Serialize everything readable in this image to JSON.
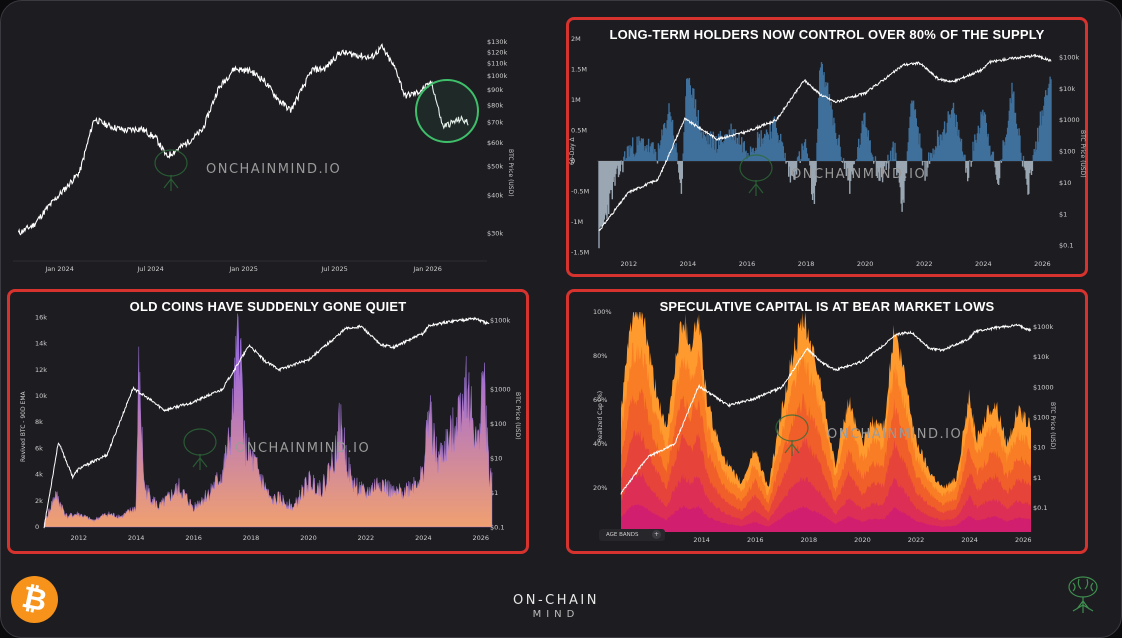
{
  "brand": {
    "watermark": "ONCHAINMIND.IO",
    "footer_main": "ON-CHAIN",
    "footer_sub": "MIND",
    "bitcoin_symbol": "₿"
  },
  "colors": {
    "background": "#1c1c21",
    "frame_red": "#d6322e",
    "price_line": "#ffffff",
    "blue_area": "#3f6f9b",
    "grey_area": "#9aa7b3",
    "highlight_green": "#2e8b57",
    "bitcoin_orange": "#f7931a"
  },
  "chart_data": [
    {
      "id": "btc-price",
      "type": "line",
      "title": "",
      "x_ticks": [
        "Jan 2024",
        "Jul 2024",
        "Jan 2025",
        "Jul 2025",
        "Jan 2026"
      ],
      "y_ticks": [
        "$130k",
        "$120k",
        "$110k",
        "$100k",
        "$90k",
        "$80k",
        "$70k",
        "$60k",
        "$50k",
        "$40k",
        "$30k"
      ],
      "ylabel": "BTC Price (USD)",
      "log_scale": true,
      "series": [
        {
          "x": [
            "2023-10-15",
            "2023-11-15",
            "2023-12-15",
            "2024-01-15",
            "2024-02-15",
            "2024-03-13",
            "2024-04-15",
            "2024-05-15",
            "2024-06-15",
            "2024-07-15",
            "2024-08-05",
            "2024-09-15",
            "2024-10-15",
            "2024-11-15",
            "2024-12-17",
            "2025-01-20",
            "2025-02-15",
            "2025-03-15",
            "2025-04-08",
            "2025-05-20",
            "2025-06-15",
            "2025-07-14",
            "2025-08-14",
            "2025-09-15",
            "2025-10-06",
            "2025-11-05",
            "2025-11-21",
            "2025-12-15",
            "2026-01-14",
            "2026-02-05",
            "2026-02-15",
            "2026-03-10",
            "2026-03-25"
          ],
          "y": [
            30,
            32,
            37,
            42,
            48,
            72,
            68,
            66,
            67,
            62,
            54,
            60,
            66,
            90,
            106,
            104,
            97,
            83,
            77,
            105,
            106,
            120,
            118,
            115,
            125,
            104,
            86,
            88,
            95,
            68,
            69,
            72,
            70
          ]
        }
      ],
      "annotations": [
        "green-circle-highlight"
      ]
    },
    {
      "id": "lth-supply",
      "type": "area",
      "title": "LONG-TERM HOLDERS NOW CONTROL OVER 80% OF THE SUPPLY",
      "x_ticks": [
        "2012",
        "2014",
        "2016",
        "2018",
        "2020",
        "2022",
        "2024",
        "2026"
      ],
      "y_ticks_left": [
        "2M",
        "1.5M",
        "1M",
        "0.5M",
        "0",
        "-0.5M",
        "-1M",
        "-1.5M"
      ],
      "y_ticks_right": [
        "$100k",
        "$10k",
        "$1000",
        "$100",
        "$10",
        "$1",
        "$0.1"
      ],
      "ylabel_left": "60-Day Δ",
      "ylabel_right": "BTC Price (USD)",
      "series": [
        {
          "x": [
            2011,
            2011.5,
            2012,
            2012.5,
            2013,
            2013.4,
            2013.8,
            2014,
            2014.5,
            2015,
            2015.5,
            2016,
            2016.5,
            2017,
            2017.5,
            2018,
            2018.3,
            2018.5,
            2019,
            2019.5,
            2020,
            2020.5,
            2021,
            2021.3,
            2021.6,
            2022,
            2022.5,
            2023,
            2023.5,
            2024,
            2024.5,
            2025,
            2025.5,
            2026,
            2026.3
          ],
          "y": [
            -1.3,
            -0.4,
            0.2,
            0.3,
            0.1,
            0.9,
            -0.5,
            1.5,
            0.4,
            0.3,
            0.5,
            0.2,
            0.4,
            0.6,
            -0.3,
            0.3,
            -0.8,
            1.7,
            0.5,
            -0.4,
            0.7,
            -0.3,
            0.2,
            -0.8,
            1.2,
            -0.2,
            0.4,
            0.8,
            -0.2,
            0.9,
            -0.4,
            1.2,
            -0.5,
            0.8,
            1.5
          ]
        },
        {
          "x": [
            2011,
            2012,
            2013,
            2013.9,
            2014.5,
            2015,
            2016,
            2017,
            2017.95,
            2018.5,
            2019,
            2020,
            2021,
            2021.3,
            2021.85,
            2022.5,
            2023,
            2024,
            2024.2,
            2025,
            2025.8,
            2026.3
          ],
          "y": [
            0.3,
            5,
            13,
            1100,
            500,
            250,
            430,
            1000,
            19000,
            6500,
            3800,
            7200,
            35000,
            58000,
            67000,
            20000,
            17000,
            42000,
            70000,
            95000,
            115000,
            78000
          ]
        }
      ]
    },
    {
      "id": "revived-btc",
      "type": "area",
      "title": "OLD COINS HAVE SUDDENLY GONE QUIET",
      "x_ticks": [
        "2012",
        "2014",
        "2016",
        "2018",
        "2020",
        "2022",
        "2024",
        "2026"
      ],
      "y_ticks_left": [
        "16k",
        "14k",
        "12k",
        "10k",
        "8k",
        "6k",
        "4k",
        "2k",
        "0"
      ],
      "y_ticks_right": [
        "$100k",
        "$1000",
        "$100",
        "$10",
        "$1",
        "$0.1"
      ],
      "ylabel_left": "Revived BTC - 90D EMA",
      "ylabel_right": "BTC Price (USD)",
      "series": [
        {
          "x": [
            2010.8,
            2011.2,
            2011.6,
            2012,
            2012.5,
            2013,
            2013.5,
            2014,
            2014.1,
            2014.3,
            2014.8,
            2015.5,
            2016,
            2016.5,
            2017,
            2017.3,
            2017.6,
            2017.8,
            2018.2,
            2018.7,
            2019,
            2019.5,
            2020,
            2020.5,
            2021,
            2021.1,
            2021.5,
            2022,
            2022.5,
            2023,
            2023.5,
            2024,
            2024.2,
            2024.5,
            2025,
            2025.5,
            2025.9,
            2026.1,
            2026.3
          ],
          "y": [
            0.2,
            2.5,
            0.8,
            1,
            0.5,
            1,
            0.8,
            1.5,
            11.5,
            3,
            1.5,
            3,
            1.5,
            2.5,
            4,
            7,
            15,
            6,
            4.5,
            2,
            2.2,
            1.5,
            3.5,
            3,
            6,
            8,
            3.5,
            2.5,
            3.5,
            2.5,
            3,
            4,
            9,
            5,
            7,
            11,
            6,
            12,
            4
          ]
        },
        {
          "x": [
            2010.8,
            2011.3,
            2011.8,
            2012,
            2013,
            2013.9,
            2014.5,
            2015,
            2016,
            2017,
            2017.95,
            2018.5,
            2019,
            2020,
            2021,
            2021.3,
            2021.85,
            2022.5,
            2023,
            2024,
            2024.2,
            2025,
            2025.8,
            2026.3
          ],
          "y": [
            0.1,
            30,
            3,
            5,
            13,
            1100,
            500,
            250,
            430,
            1000,
            19000,
            6500,
            3800,
            7200,
            35000,
            58000,
            67000,
            20000,
            17000,
            42000,
            70000,
            95000,
            115000,
            78000
          ]
        }
      ]
    },
    {
      "id": "realized-cap-bands",
      "type": "area",
      "title": "SPECULATIVE CAPITAL IS AT BEAR MARKET LOWS",
      "x_ticks": [
        "2012",
        "2014",
        "2016",
        "2018",
        "2020",
        "2022",
        "2024",
        "2026"
      ],
      "y_ticks_left": [
        "100%",
        "80%",
        "60%",
        "40%",
        "20%"
      ],
      "y_ticks_right": [
        "$100k",
        "$10k",
        "$1000",
        "$100",
        "$10",
        "$1",
        "$0.1"
      ],
      "ylabel_left": "Realized Cap (%)",
      "ylabel_right": "BTC Price (USD)",
      "button": "AGE BANDS",
      "series": [
        {
          "x": [
            2011,
            2011.4,
            2011.8,
            2012.2,
            2012.7,
            2013,
            2013.3,
            2013.6,
            2013.9,
            2014.2,
            2014.6,
            2015,
            2015.5,
            2016,
            2016.5,
            2017,
            2017.4,
            2017.8,
            2018.1,
            2018.5,
            2019,
            2019.5,
            2020,
            2020.4,
            2020.8,
            2021.2,
            2021.6,
            2022,
            2022.5,
            2023,
            2023.5,
            2024,
            2024.3,
            2024.7,
            2025,
            2025.4,
            2025.8,
            2026.3
          ],
          "y": [
            55,
            98,
            100,
            70,
            45,
            75,
            98,
            85,
            98,
            60,
            42,
            30,
            22,
            38,
            20,
            55,
            80,
            96,
            85,
            65,
            30,
            60,
            40,
            50,
            48,
            92,
            70,
            42,
            28,
            20,
            24,
            62,
            42,
            55,
            58,
            40,
            55,
            48
          ]
        }
      ]
    }
  ]
}
